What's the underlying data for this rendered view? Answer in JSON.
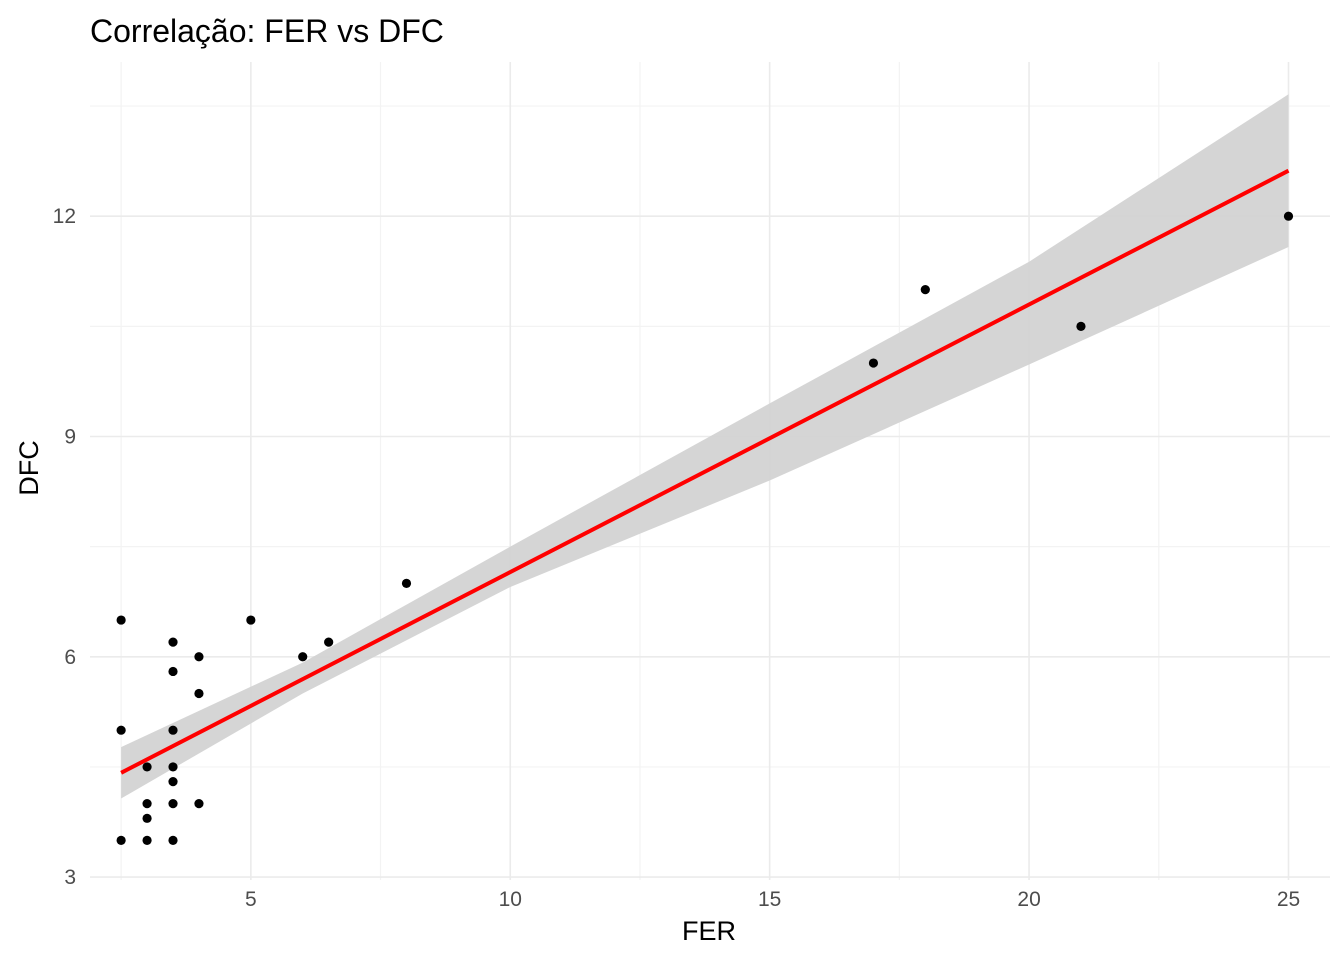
{
  "chart_data": {
    "type": "scatter",
    "title": "Correlação: FER vs DFC",
    "xlabel": "FER",
    "ylabel": "DFC",
    "xlim": [
      1.9,
      25.8
    ],
    "ylim": [
      2.96,
      14.1
    ],
    "x_ticks": [
      5,
      10,
      15,
      20,
      25
    ],
    "y_ticks": [
      3,
      6,
      9,
      12
    ],
    "grid": true,
    "legend": "none",
    "points": {
      "x": [
        2.5,
        2.5,
        2.5,
        3,
        3,
        3,
        3,
        3.5,
        3.5,
        3.5,
        3.5,
        3.5,
        3.5,
        3.5,
        4,
        4,
        4,
        5,
        6,
        6.5,
        8,
        17,
        18,
        21,
        25
      ],
      "y": [
        6.5,
        5,
        3.5,
        4.5,
        4,
        3.8,
        3.5,
        6.2,
        5.8,
        5,
        4.5,
        4.3,
        4,
        3.5,
        6,
        5.5,
        4,
        6.5,
        6,
        6.2,
        7,
        10,
        11,
        10.5,
        12
      ]
    },
    "fit_line": {
      "x": [
        2.5,
        25
      ],
      "y": [
        4.42,
        12.62
      ],
      "color": "#ff0000"
    },
    "confidence_band": {
      "x": [
        2.5,
        6,
        10,
        15,
        20,
        25
      ],
      "lower": [
        4.07,
        5.5,
        6.95,
        8.4,
        9.98,
        11.58
      ],
      "upper": [
        4.77,
        5.92,
        7.5,
        9.45,
        11.38,
        13.66
      ],
      "color": "#d3d3d3"
    },
    "point_color": "#000000"
  }
}
